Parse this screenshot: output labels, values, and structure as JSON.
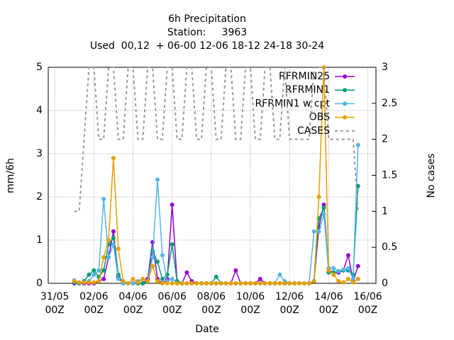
{
  "chart_data": {
    "type": "line",
    "title": [
      "6h Precipitation",
      "Station:     3963",
      "Used  00,12  + 06-00 12-06 18-12 24-18 30-24"
    ],
    "xlabel": "Date",
    "ylabel": "mm/6h",
    "y2label": "No cases",
    "x": [
      "01/06 00Z",
      "01/06 06Z",
      "01/06 12Z",
      "01/06 18Z",
      "02/06 00Z",
      "02/06 06Z",
      "02/06 12Z",
      "02/06 18Z",
      "03/06 00Z",
      "03/06 06Z",
      "03/06 12Z",
      "03/06 18Z",
      "04/06 00Z",
      "04/06 06Z",
      "04/06 12Z",
      "04/06 18Z",
      "05/06 00Z",
      "05/06 06Z",
      "05/06 12Z",
      "05/06 18Z",
      "06/06 00Z",
      "06/06 06Z",
      "06/06 12Z",
      "06/06 18Z",
      "07/06 00Z",
      "07/06 06Z",
      "07/06 12Z",
      "07/06 18Z",
      "08/06 00Z",
      "08/06 06Z",
      "08/06 12Z",
      "08/06 18Z",
      "09/06 00Z",
      "09/06 06Z",
      "09/06 12Z",
      "09/06 18Z",
      "10/06 00Z",
      "10/06 06Z",
      "10/06 12Z",
      "10/06 18Z",
      "11/06 00Z",
      "11/06 06Z",
      "11/06 12Z",
      "11/06 18Z",
      "12/06 00Z",
      "12/06 06Z",
      "12/06 12Z",
      "12/06 18Z",
      "13/06 00Z",
      "13/06 06Z",
      "13/06 12Z",
      "13/06 18Z",
      "14/06 00Z",
      "14/06 06Z",
      "14/06 12Z",
      "14/06 18Z",
      "15/06 00Z",
      "15/06 06Z",
      "15/06 12Z"
    ],
    "series": [
      {
        "name": "RFRMIN25",
        "color": "#9400d3",
        "values": [
          0,
          0,
          0,
          0,
          0,
          0.05,
          0.1,
          0.6,
          1.2,
          0.15,
          0,
          0,
          0,
          0,
          0,
          0.1,
          0.95,
          0.1,
          0,
          0.1,
          1.82,
          0.05,
          0,
          0.25,
          0.05,
          0,
          0,
          0,
          0,
          0,
          0,
          0,
          0,
          0.3,
          0,
          0,
          0,
          0,
          0.1,
          0,
          0,
          0,
          0,
          0,
          0,
          0,
          0,
          0,
          0,
          0.05,
          1.3,
          1.82,
          0.3,
          0.25,
          0.25,
          0.3,
          0.65,
          0.05,
          0.4
        ]
      },
      {
        "name": "RFRMIN1",
        "color": "#009e73",
        "values": [
          0.02,
          0,
          0.05,
          0.2,
          0.3,
          0.15,
          0.3,
          0.9,
          1.05,
          0.2,
          0,
          0,
          0,
          0,
          0,
          0.05,
          0.75,
          0.5,
          0.1,
          0.2,
          0.9,
          0.05,
          0,
          0,
          0,
          0,
          0,
          0,
          0,
          0.15,
          0,
          0,
          0,
          0,
          0,
          0,
          0,
          0,
          0,
          0,
          0,
          0,
          0,
          0,
          0,
          0,
          0,
          0,
          0,
          0.05,
          1.5,
          1.75,
          0.25,
          0.25,
          0.28,
          0.3,
          0.3,
          0.2,
          2.25
        ]
      },
      {
        "name": "RFRMIN1 w cpt",
        "color": "#56b4e9",
        "values": [
          0.07,
          0.02,
          0.02,
          0.05,
          0.2,
          0.3,
          1.95,
          0.6,
          0.9,
          0.1,
          0,
          0,
          0,
          0.05,
          0.1,
          0.05,
          0.6,
          2.4,
          0.65,
          0.05,
          0.1,
          0,
          0,
          0,
          0,
          0,
          0,
          0,
          0,
          0,
          0,
          0,
          0,
          0,
          0,
          0,
          0,
          0,
          0,
          0,
          0,
          0,
          0.2,
          0.05,
          0,
          0,
          0,
          0,
          0,
          1.2,
          1.2,
          1.6,
          0.35,
          0.35,
          0.28,
          0.32,
          0.35,
          0.1,
          3.2
        ]
      },
      {
        "name": "OBS",
        "color": "#e69f00",
        "values": [
          0.05,
          0.02,
          0.02,
          0.02,
          0.02,
          0.05,
          0.6,
          1.0,
          2.9,
          0.8,
          0.05,
          0,
          0.1,
          0.02,
          0.1,
          0.05,
          0.4,
          0.05,
          0,
          0,
          0,
          0,
          0,
          0,
          0,
          0,
          0,
          0,
          0,
          0,
          0,
          0,
          0,
          0,
          0,
          0,
          0,
          0,
          0,
          0,
          0,
          0,
          0,
          0,
          0,
          0,
          0,
          0,
          0,
          0.05,
          2.0,
          5.0,
          0.3,
          0.2,
          0.05,
          0.02,
          0.1,
          0.02,
          0.1
        ]
      },
      {
        "name": "CASES",
        "color": "#999999",
        "axis": "y2",
        "dashed": true,
        "values": [
          1,
          1,
          2,
          3,
          3,
          2,
          2,
          3,
          3,
          2,
          2,
          3,
          3,
          2,
          2,
          3,
          3,
          2,
          2,
          3,
          3,
          2,
          2,
          3,
          3,
          2,
          2,
          3,
          3,
          2,
          2,
          3,
          3,
          2,
          2,
          3,
          3,
          2,
          2,
          3,
          3,
          2,
          2,
          3,
          2,
          2,
          2,
          2,
          2,
          3,
          3,
          3,
          2,
          2,
          2,
          2,
          2,
          2,
          1
        ]
      }
    ],
    "xlim": [
      "30/05 16Z",
      "16/06 10Z"
    ],
    "xticks": [
      {
        "value": "31/05 00Z",
        "label": "31/05",
        "hour_label": "00Z"
      },
      {
        "value": "02/06 00Z",
        "label": "02/06",
        "hour_label": "00Z"
      },
      {
        "value": "04/06 00Z",
        "label": "04/06",
        "hour_label": "00Z"
      },
      {
        "value": "06/06 00Z",
        "label": "06/06",
        "hour_label": "00Z"
      },
      {
        "value": "08/06 00Z",
        "label": "08/06",
        "hour_label": "00Z"
      },
      {
        "value": "10/06 00Z",
        "label": "10/06",
        "hour_label": "00Z"
      },
      {
        "value": "12/06 00Z",
        "label": "12/06",
        "hour_label": "00Z"
      },
      {
        "value": "14/06 00Z",
        "label": "14/06",
        "hour_label": "00Z"
      },
      {
        "value": "16/06 00Z",
        "label": "16/06",
        "hour_label": "00Z"
      }
    ],
    "ylim": [
      0,
      5
    ],
    "yticks": [
      0,
      1,
      2,
      3,
      4,
      5
    ],
    "y2lim": [
      0,
      3
    ],
    "y2ticks": [
      0,
      0.5,
      1,
      1.5,
      2,
      2.5,
      3
    ],
    "grid": true,
    "legend": "top-right"
  }
}
